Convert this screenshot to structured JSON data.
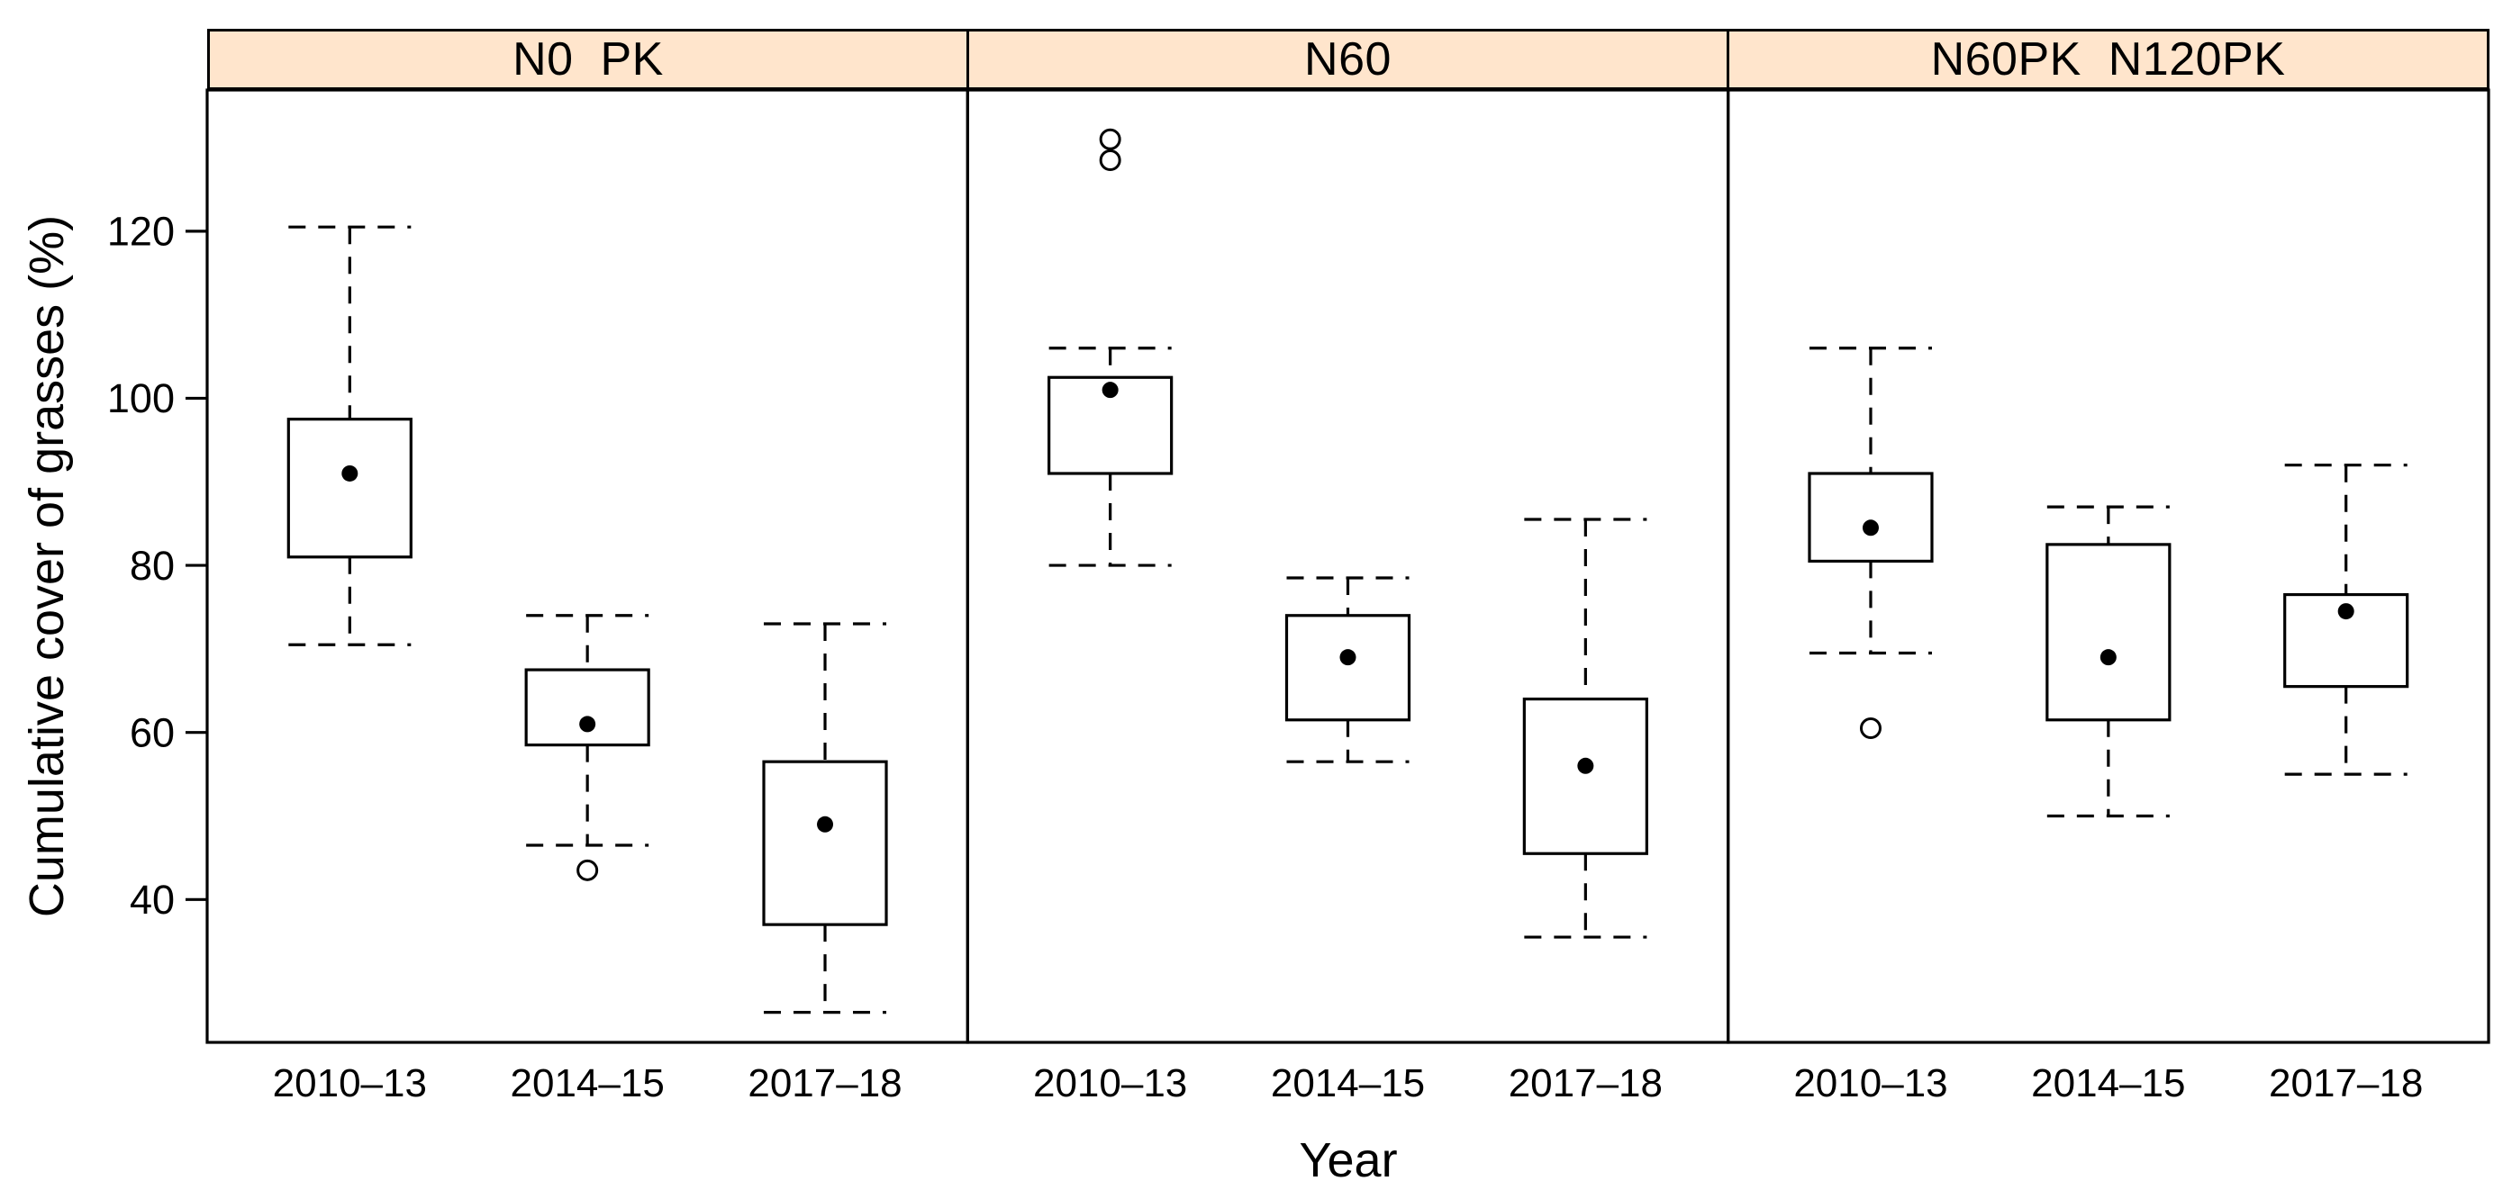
{
  "chart_data": {
    "type": "boxplot",
    "title": "",
    "xlabel": "Year",
    "ylabel": "Cumulative cover of grasses (%)",
    "categories": [
      "2010–13",
      "2014–15",
      "2017–18"
    ],
    "yticks": [
      40,
      60,
      80,
      100,
      120
    ],
    "ylim": [
      22.9,
      136.9
    ],
    "grid": false,
    "legend": "none",
    "colors": {
      "strip_background": "#FFE5CC",
      "line": "#000000",
      "box_fill": "#FFFFFF",
      "text": "#000000"
    },
    "panels": [
      {
        "label": "N0  PK",
        "boxes": [
          {
            "category": "2010–13",
            "whisker_low": 70.5,
            "q1": 81,
            "median": 91,
            "q3": 97.5,
            "whisker_high": 120.5,
            "outliers": []
          },
          {
            "category": "2014–15",
            "whisker_low": 46.5,
            "q1": 58.5,
            "median": 61,
            "q3": 67.5,
            "whisker_high": 74,
            "outliers": [
              43.5
            ]
          },
          {
            "category": "2017–18",
            "whisker_low": 26.5,
            "q1": 37,
            "median": 49,
            "q3": 56.5,
            "whisker_high": 73,
            "outliers": []
          }
        ]
      },
      {
        "label": "N60",
        "boxes": [
          {
            "category": "2010–13",
            "whisker_low": 80,
            "q1": 91,
            "median": 101,
            "q3": 102.5,
            "whisker_high": 106,
            "outliers": [
              128.5,
              131
            ]
          },
          {
            "category": "2014–15",
            "whisker_low": 56.5,
            "q1": 61.5,
            "median": 69,
            "q3": 74,
            "whisker_high": 78.5,
            "outliers": []
          },
          {
            "category": "2017–18",
            "whisker_low": 35.5,
            "q1": 45.5,
            "median": 56,
            "q3": 64,
            "whisker_high": 85.5,
            "outliers": []
          }
        ]
      },
      {
        "label": "N60PK  N120PK",
        "boxes": [
          {
            "category": "2010–13",
            "whisker_low": 69.5,
            "q1": 80.5,
            "median": 84.5,
            "q3": 91,
            "whisker_high": 106,
            "outliers": [
              60.5
            ]
          },
          {
            "category": "2014–15",
            "whisker_low": 50,
            "q1": 61.5,
            "median": 69,
            "q3": 82.5,
            "whisker_high": 87,
            "outliers": []
          },
          {
            "category": "2017–18",
            "whisker_low": 55,
            "q1": 65.5,
            "median": 74.5,
            "q3": 76.5,
            "whisker_high": 92,
            "outliers": []
          }
        ]
      }
    ]
  }
}
